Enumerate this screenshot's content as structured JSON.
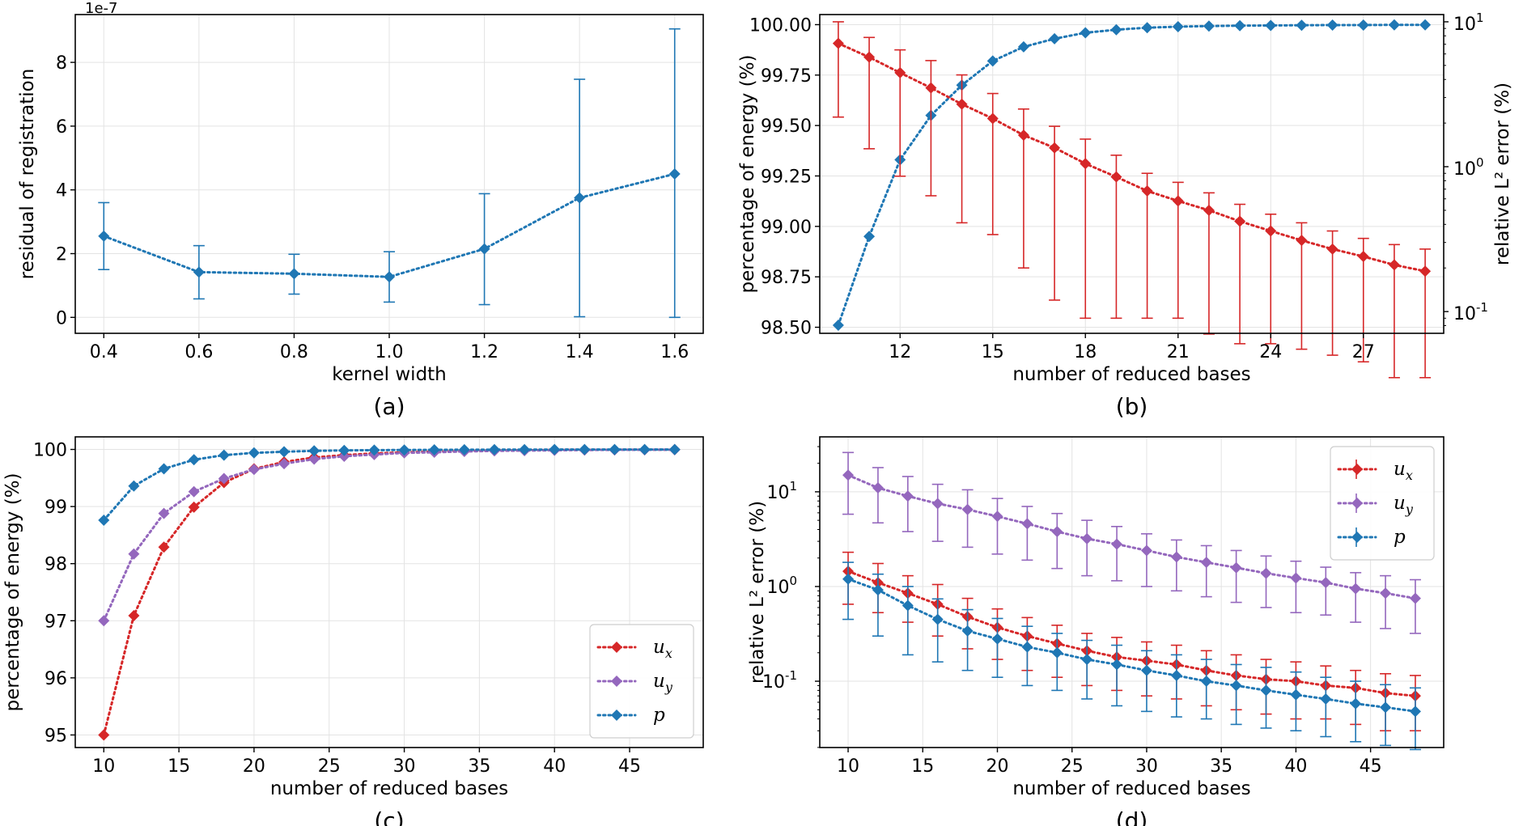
{
  "chart_data": [
    {
      "id": "a",
      "panel_label": "(a)",
      "type": "line",
      "errorbars": true,
      "xlabel": "kernel width",
      "ylabel": "residual of registration",
      "offset_label": "1e-7",
      "xlim": [
        0.34,
        1.66
      ],
      "ylim": [
        -0.5,
        9.5
      ],
      "xticks": [
        0.4,
        0.6,
        0.8,
        1.0,
        1.2,
        1.4,
        1.6
      ],
      "xtick_labels": [
        "0.4",
        "0.6",
        "0.8",
        "1.0",
        "1.2",
        "1.4",
        "1.6"
      ],
      "yticks": [
        0,
        2,
        4,
        6,
        8
      ],
      "ytick_labels": [
        "0",
        "2",
        "4",
        "6",
        "8"
      ],
      "grid": true,
      "series": [
        {
          "name": "residual",
          "color": "#1f77b4",
          "axis": "left",
          "x": [
            0.4,
            0.6,
            0.8,
            1.0,
            1.2,
            1.4,
            1.6
          ],
          "y": [
            2.55,
            1.42,
            1.37,
            1.27,
            2.15,
            3.75,
            4.5
          ],
          "yerr_lo": [
            1.5,
            0.58,
            0.73,
            0.48,
            0.4,
            0.02,
            0.0
          ],
          "yerr_hi": [
            3.6,
            2.25,
            1.98,
            2.06,
            3.88,
            7.47,
            9.05
          ]
        }
      ]
    },
    {
      "id": "b",
      "panel_label": "(b)",
      "type": "line",
      "errorbars": true,
      "xlabel": "number of reduced bases",
      "ylabel": "percentage of energy (%)",
      "ylabel_right": "relative L² error (%)",
      "xlim": [
        9.4,
        29.6
      ],
      "ylim": [
        98.47,
        100.05
      ],
      "ylim_right_log10": [
        -1.15,
        1.05
      ],
      "xticks": [
        12,
        15,
        18,
        21,
        24,
        27
      ],
      "xtick_labels": [
        "12",
        "15",
        "18",
        "21",
        "24",
        "27"
      ],
      "yticks": [
        98.5,
        98.75,
        99.0,
        99.25,
        99.5,
        99.75,
        100.0
      ],
      "ytick_labels": [
        "98.50",
        "98.75",
        "99.00",
        "99.25",
        "99.50",
        "99.75",
        "100.00"
      ],
      "yticks_right": [
        -1,
        0,
        1
      ],
      "ytick_labels_right": [
        "10",
        "10",
        "10"
      ],
      "ytick_exponents_right": [
        "-1",
        "0",
        "1"
      ],
      "left_axis_color": "#1f77b4",
      "right_axis_color": "#d62728",
      "grid": true,
      "series": [
        {
          "name": "energy",
          "color": "#1f77b4",
          "axis": "left",
          "x": [
            10,
            11,
            12,
            13,
            14,
            15,
            16,
            17,
            18,
            19,
            20,
            21,
            22,
            23,
            24,
            25,
            26,
            27,
            28,
            29
          ],
          "y": [
            98.51,
            98.95,
            99.33,
            99.55,
            99.7,
            99.82,
            99.89,
            99.93,
            99.96,
            99.975,
            99.985,
            99.99,
            99.993,
            99.995,
            99.996,
            99.997,
            99.998,
            99.998,
            99.999,
            99.999
          ]
        },
        {
          "name": "error",
          "color": "#d62728",
          "axis": "right",
          "log": true,
          "x": [
            10,
            11,
            12,
            13,
            14,
            15,
            16,
            17,
            18,
            19,
            20,
            21,
            22,
            23,
            24,
            25,
            26,
            27,
            28,
            29
          ],
          "y": [
            7.1,
            5.7,
            4.45,
            3.5,
            2.7,
            2.15,
            1.65,
            1.35,
            1.05,
            0.85,
            0.68,
            0.58,
            0.5,
            0.42,
            0.36,
            0.31,
            0.27,
            0.24,
            0.21,
            0.19
          ],
          "yerr_lo": [
            2.2,
            1.33,
            0.86,
            0.63,
            0.41,
            0.34,
            0.2,
            0.12,
            0.09,
            0.09,
            0.09,
            0.09,
            0.07,
            0.06,
            0.06,
            0.055,
            0.05,
            0.045,
            0.035,
            0.035
          ],
          "yerr_hi": [
            10.0,
            7.8,
            6.4,
            5.4,
            4.3,
            3.2,
            2.5,
            1.9,
            1.55,
            1.2,
            0.9,
            0.78,
            0.66,
            0.55,
            0.47,
            0.41,
            0.36,
            0.32,
            0.29,
            0.27
          ]
        }
      ]
    },
    {
      "id": "c",
      "panel_label": "(c)",
      "type": "line",
      "xlabel": "number of reduced bases",
      "ylabel": "percentage of energy (%)",
      "xlim": [
        8.1,
        49.9
      ],
      "ylim": [
        94.78,
        100.22
      ],
      "xticks": [
        10,
        15,
        20,
        25,
        30,
        35,
        40,
        45
      ],
      "xtick_labels": [
        "10",
        "15",
        "20",
        "25",
        "30",
        "35",
        "40",
        "45"
      ],
      "yticks": [
        95,
        96,
        97,
        98,
        99,
        100
      ],
      "ytick_labels": [
        "95",
        "96",
        "97",
        "98",
        "99",
        "100"
      ],
      "grid": true,
      "legend": {
        "placement": "lower-right",
        "entries": [
          "u",
          "u",
          "p"
        ],
        "subscripts": [
          "x",
          "y",
          ""
        ]
      },
      "series": [
        {
          "name": "u_x",
          "color": "#d62728",
          "x": [
            10,
            12,
            14,
            16,
            18,
            20,
            22,
            24,
            26,
            28,
            30,
            32,
            34,
            36,
            38,
            40,
            42,
            44,
            46,
            48
          ],
          "y": [
            95.0,
            97.09,
            98.29,
            98.99,
            99.42,
            99.66,
            99.78,
            99.86,
            99.9,
            99.93,
            99.95,
            99.96,
            99.97,
            99.98,
            99.985,
            99.99,
            99.992,
            99.994,
            99.995,
            99.996
          ]
        },
        {
          "name": "u_y",
          "color": "#9467bd",
          "x": [
            10,
            12,
            14,
            16,
            18,
            20,
            22,
            24,
            26,
            28,
            30,
            32,
            34,
            36,
            38,
            40,
            42,
            44,
            46,
            48
          ],
          "y": [
            97.0,
            98.17,
            98.88,
            99.26,
            99.49,
            99.65,
            99.75,
            99.83,
            99.88,
            99.91,
            99.94,
            99.95,
            99.965,
            99.975,
            99.98,
            99.985,
            99.99,
            99.992,
            99.994,
            99.995
          ]
        },
        {
          "name": "p",
          "color": "#1f77b4",
          "x": [
            10,
            12,
            14,
            16,
            18,
            20,
            22,
            24,
            26,
            28,
            30,
            32,
            34,
            36,
            38,
            40,
            42,
            44,
            46,
            48
          ],
          "y": [
            98.76,
            99.36,
            99.66,
            99.82,
            99.9,
            99.94,
            99.96,
            99.975,
            99.983,
            99.988,
            99.99,
            99.993,
            99.995,
            99.996,
            99.997,
            99.998,
            99.998,
            99.999,
            99.999,
            99.999
          ]
        }
      ]
    },
    {
      "id": "d",
      "panel_label": "(d)",
      "type": "line",
      "errorbars": true,
      "log": true,
      "xlabel": "number of reduced bases",
      "ylabel": "relative L² error (%)",
      "xlim": [
        8.1,
        49.9
      ],
      "ylim_log10": [
        -1.7,
        1.58
      ],
      "xticks": [
        10,
        15,
        20,
        25,
        30,
        35,
        40,
        45
      ],
      "xtick_labels": [
        "10",
        "15",
        "20",
        "25",
        "30",
        "35",
        "40",
        "45"
      ],
      "yticks": [
        -1,
        0,
        1
      ],
      "ytick_labels": [
        "10",
        "10",
        "10"
      ],
      "ytick_exponents": [
        "-1",
        "0",
        "1"
      ],
      "grid": true,
      "legend": {
        "placement": "top-right",
        "entries": [
          "u",
          "u",
          "p"
        ],
        "subscripts": [
          "x",
          "y",
          ""
        ]
      },
      "series": [
        {
          "name": "u_x",
          "color": "#d62728",
          "x": [
            10,
            12,
            14,
            16,
            18,
            20,
            22,
            24,
            26,
            28,
            30,
            32,
            34,
            36,
            38,
            40,
            42,
            44,
            46,
            48
          ],
          "y": [
            1.45,
            1.1,
            0.85,
            0.65,
            0.48,
            0.37,
            0.3,
            0.25,
            0.21,
            0.18,
            0.165,
            0.15,
            0.13,
            0.115,
            0.105,
            0.1,
            0.09,
            0.085,
            0.075,
            0.07
          ],
          "yerr_lo": [
            0.65,
            0.53,
            0.42,
            0.3,
            0.22,
            0.17,
            0.13,
            0.11,
            0.09,
            0.08,
            0.07,
            0.065,
            0.055,
            0.05,
            0.045,
            0.04,
            0.04,
            0.035,
            0.03,
            0.03
          ],
          "yerr_hi": [
            2.3,
            1.75,
            1.3,
            1.05,
            0.75,
            0.58,
            0.47,
            0.39,
            0.32,
            0.29,
            0.26,
            0.24,
            0.21,
            0.19,
            0.17,
            0.16,
            0.145,
            0.13,
            0.12,
            0.115
          ]
        },
        {
          "name": "u_y",
          "color": "#9467bd",
          "x": [
            10,
            12,
            14,
            16,
            18,
            20,
            22,
            24,
            26,
            28,
            30,
            32,
            34,
            36,
            38,
            40,
            42,
            44,
            46,
            48
          ],
          "y": [
            15.0,
            11.0,
            9.0,
            7.5,
            6.5,
            5.5,
            4.6,
            3.8,
            3.2,
            2.8,
            2.4,
            2.05,
            1.8,
            1.58,
            1.38,
            1.23,
            1.1,
            0.95,
            0.85,
            0.75
          ],
          "yerr_lo": [
            5.8,
            4.7,
            3.8,
            3.0,
            2.6,
            2.2,
            1.9,
            1.55,
            1.3,
            1.15,
            1.0,
            0.9,
            0.78,
            0.68,
            0.6,
            0.53,
            0.5,
            0.42,
            0.36,
            0.32
          ],
          "yerr_hi": [
            26.0,
            18.0,
            14.5,
            12.0,
            10.5,
            8.5,
            7.0,
            5.9,
            5.0,
            4.3,
            3.6,
            3.1,
            2.7,
            2.4,
            2.1,
            1.85,
            1.6,
            1.4,
            1.3,
            1.18
          ]
        },
        {
          "name": "p",
          "color": "#1f77b4",
          "x": [
            10,
            12,
            14,
            16,
            18,
            20,
            22,
            24,
            26,
            28,
            30,
            32,
            34,
            36,
            38,
            40,
            42,
            44,
            46,
            48
          ],
          "y": [
            1.2,
            0.92,
            0.63,
            0.45,
            0.34,
            0.28,
            0.23,
            0.2,
            0.17,
            0.15,
            0.13,
            0.115,
            0.1,
            0.09,
            0.08,
            0.072,
            0.065,
            0.058,
            0.053,
            0.048
          ],
          "yerr_lo": [
            0.45,
            0.3,
            0.19,
            0.16,
            0.13,
            0.11,
            0.09,
            0.08,
            0.065,
            0.055,
            0.048,
            0.042,
            0.04,
            0.035,
            0.032,
            0.03,
            0.026,
            0.023,
            0.021,
            0.019
          ],
          "yerr_hi": [
            1.8,
            1.35,
            1.0,
            0.74,
            0.57,
            0.46,
            0.38,
            0.32,
            0.27,
            0.24,
            0.21,
            0.19,
            0.17,
            0.15,
            0.14,
            0.125,
            0.11,
            0.1,
            0.092,
            0.085
          ]
        }
      ]
    }
  ]
}
